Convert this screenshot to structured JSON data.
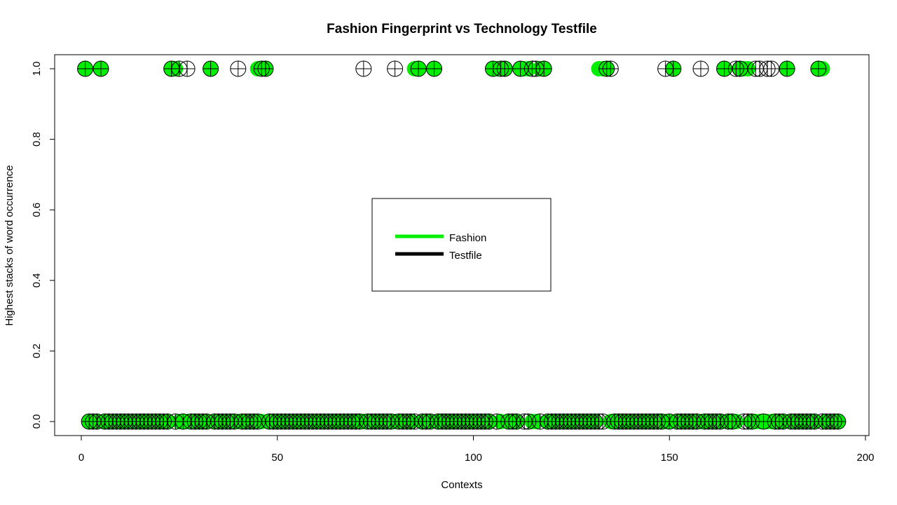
{
  "chart_data": {
    "type": "scatter",
    "title": "Fashion Fingerprint vs Technology Testfile",
    "xlabel": "Contexts",
    "ylabel": "Highest stacks of word occurrence",
    "xlim": [
      -6,
      200
    ],
    "ylim": [
      -0.04,
      1.04
    ],
    "xticks": [
      "0",
      "50",
      "100",
      "150",
      "200"
    ],
    "xtick_values": [
      0,
      50,
      100,
      150,
      200
    ],
    "yticks": [
      "0.0",
      "0.2",
      "0.4",
      "0.6",
      "0.8",
      "1.0"
    ],
    "ytick_values": [
      0,
      0.2,
      0.4,
      0.6,
      0.8,
      1.0
    ],
    "legend": {
      "position": "center",
      "entries": [
        {
          "label": "Fashion",
          "color": "#00ee00"
        },
        {
          "label": "Testfile",
          "color": "#000000"
        }
      ]
    },
    "series": [
      {
        "name": "Fashion",
        "color": "#00ee00",
        "marker": "filled-circle",
        "x": [
          1,
          2,
          3,
          4,
          5,
          6,
          7,
          8,
          9,
          10,
          11,
          12,
          13,
          14,
          15,
          16,
          17,
          18,
          19,
          20,
          21,
          22,
          23,
          24,
          25,
          26,
          27,
          28,
          29,
          30,
          31,
          32,
          33,
          34,
          35,
          36,
          37,
          38,
          39,
          40,
          41,
          42,
          43,
          44,
          45,
          46,
          47,
          48,
          49,
          50,
          51,
          52,
          53,
          54,
          55,
          56,
          57,
          58,
          59,
          60,
          61,
          62,
          63,
          64,
          65,
          66,
          67,
          68,
          69,
          70,
          71,
          72,
          73,
          74,
          75,
          76,
          77,
          78,
          79,
          80,
          81,
          82,
          83,
          84,
          85,
          86,
          87,
          88,
          89,
          90,
          91,
          92,
          93,
          94,
          95,
          96,
          97,
          98,
          99,
          100,
          101,
          102,
          103,
          104,
          105,
          106,
          107,
          108,
          109,
          110,
          111,
          112,
          113,
          114,
          115,
          116,
          117,
          118,
          119,
          120,
          121,
          122,
          123,
          124,
          125,
          126,
          127,
          128,
          129,
          130,
          131,
          132,
          133,
          134,
          135,
          136,
          137,
          138,
          139,
          140,
          141,
          142,
          143,
          144,
          145,
          146,
          147,
          148,
          149,
          150,
          151,
          152,
          153,
          154,
          155,
          156,
          157,
          158,
          159,
          160,
          161,
          162,
          163,
          164,
          165,
          166,
          167,
          168,
          169,
          170,
          171,
          172,
          173,
          174,
          175,
          176,
          177,
          178,
          179,
          180,
          181,
          182,
          183,
          184,
          185,
          186,
          187,
          188,
          189,
          190,
          191,
          192,
          193
        ],
        "y": [
          1,
          0,
          0,
          0,
          1,
          0,
          0,
          0,
          0,
          0,
          0,
          0,
          0,
          0,
          0,
          0,
          0,
          0,
          0,
          0,
          0,
          0,
          1,
          1,
          0,
          0,
          0,
          0,
          0,
          0,
          0,
          0,
          1,
          0,
          0,
          0,
          0,
          0,
          0,
          0,
          0,
          0,
          0,
          0,
          1,
          0,
          1,
          0,
          0,
          0,
          0,
          0,
          0,
          0,
          0,
          0,
          0,
          0,
          0,
          0,
          0,
          0,
          0,
          0,
          0,
          0,
          0,
          0,
          0,
          0,
          0,
          0,
          0,
          0,
          0,
          0,
          0,
          0,
          0,
          0,
          0,
          0,
          0,
          0,
          1,
          1,
          0,
          0,
          0,
          1,
          0,
          0,
          0,
          0,
          0,
          0,
          0,
          0,
          0,
          0,
          0,
          0,
          0,
          0,
          1,
          1,
          0,
          1,
          0,
          0,
          0,
          1,
          1,
          1,
          0,
          0,
          1,
          1,
          0,
          0,
          0,
          0,
          0,
          0,
          0,
          0,
          0,
          0,
          0,
          0,
          0,
          1,
          1,
          1,
          0,
          0,
          0,
          0,
          0,
          0,
          0,
          0,
          0,
          0,
          0,
          0,
          0,
          0,
          0,
          0,
          1,
          0,
          0,
          0,
          0,
          0,
          0,
          0,
          0,
          0,
          0,
          0,
          0,
          1,
          0,
          0,
          0,
          1,
          1,
          1,
          0,
          0,
          0,
          0,
          0,
          0,
          0,
          0,
          0,
          1,
          0,
          0,
          0,
          0,
          0,
          0,
          0,
          1,
          1,
          0,
          0,
          0,
          0
        ]
      },
      {
        "name": "Testfile",
        "color": "#000000",
        "marker": "circle-plus",
        "x": [
          1,
          2,
          3,
          4,
          5,
          6,
          7,
          8,
          9,
          10,
          11,
          12,
          13,
          14,
          15,
          16,
          17,
          18,
          19,
          20,
          21,
          22,
          23,
          24,
          25,
          26,
          27,
          28,
          29,
          30,
          31,
          32,
          33,
          34,
          35,
          36,
          37,
          38,
          39,
          40,
          41,
          42,
          43,
          44,
          45,
          46,
          47,
          48,
          49,
          50,
          51,
          52,
          53,
          54,
          55,
          56,
          57,
          58,
          59,
          60,
          61,
          62,
          63,
          64,
          65,
          66,
          67,
          68,
          69,
          70,
          71,
          72,
          73,
          74,
          75,
          76,
          77,
          78,
          79,
          80,
          81,
          82,
          83,
          84,
          85,
          86,
          87,
          88,
          89,
          90,
          91,
          92,
          93,
          94,
          95,
          96,
          97,
          98,
          99,
          100,
          101,
          102,
          103,
          104,
          105,
          106,
          107,
          108,
          109,
          110,
          111,
          112,
          113,
          114,
          115,
          116,
          117,
          118,
          119,
          120,
          121,
          122,
          123,
          124,
          125,
          126,
          127,
          128,
          129,
          130,
          131,
          132,
          133,
          134,
          135,
          136,
          137,
          138,
          139,
          140,
          141,
          142,
          143,
          144,
          145,
          146,
          147,
          148,
          149,
          150,
          151,
          152,
          153,
          154,
          155,
          156,
          157,
          158,
          159,
          160,
          161,
          162,
          163,
          164,
          165,
          166,
          167,
          168,
          169,
          170,
          171,
          172,
          173,
          174,
          175,
          176,
          177,
          178,
          179,
          180,
          181,
          182,
          183,
          184,
          185,
          186,
          187,
          188,
          189,
          190,
          191,
          192,
          193
        ],
        "y": [
          1,
          0,
          0,
          0,
          1,
          0,
          0,
          0,
          0,
          0,
          0,
          0,
          0,
          0,
          0,
          0,
          0,
          0,
          0,
          0,
          0,
          0,
          1,
          0,
          1,
          0,
          1,
          0,
          0,
          0,
          0,
          0,
          1,
          0,
          0,
          0,
          0,
          0,
          0,
          1,
          0,
          0,
          0,
          0,
          0,
          1,
          1,
          0,
          0,
          0,
          0,
          0,
          0,
          0,
          0,
          0,
          0,
          0,
          0,
          0,
          0,
          0,
          0,
          0,
          0,
          0,
          0,
          0,
          0,
          0,
          0,
          1,
          0,
          0,
          0,
          0,
          0,
          0,
          0,
          1,
          0,
          0,
          0,
          0,
          0,
          1,
          0,
          0,
          0,
          1,
          0,
          0,
          0,
          0,
          0,
          0,
          0,
          0,
          0,
          0,
          0,
          0,
          0,
          0,
          1,
          0,
          1,
          1,
          0,
          0,
          0,
          1,
          0,
          0,
          1,
          1,
          0,
          1,
          0,
          0,
          0,
          0,
          0,
          0,
          0,
          0,
          0,
          0,
          0,
          0,
          0,
          0,
          0,
          1,
          1,
          0,
          0,
          0,
          0,
          0,
          0,
          0,
          0,
          0,
          0,
          0,
          0,
          0,
          1,
          0,
          1,
          0,
          0,
          0,
          0,
          0,
          0,
          1,
          0,
          0,
          0,
          0,
          0,
          1,
          0,
          0,
          1,
          1,
          0,
          0,
          0,
          1,
          1,
          0,
          1,
          1,
          0,
          0,
          0,
          1,
          0,
          0,
          0,
          0,
          0,
          0,
          0,
          1,
          0,
          0,
          0,
          0,
          0
        ]
      }
    ]
  }
}
